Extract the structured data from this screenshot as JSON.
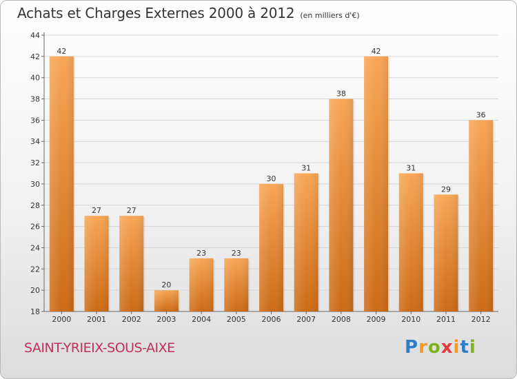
{
  "title": "Achats et Charges Externes 2000 à 2012",
  "unit": "(en milliers d'€)",
  "commune": "SAINT-YRIEIX-SOUS-AIXE",
  "logo": {
    "letters": [
      "P",
      "r",
      "o",
      "x",
      "i",
      "t",
      "i"
    ],
    "colors": [
      "#2c7fc7",
      "#f29a1f",
      "#7ab51d",
      "#e23b3b",
      "#f29a1f",
      "#2c7fc7",
      "#7ab51d"
    ]
  },
  "colors": {
    "bar_light": "#f7a655",
    "bar_dark": "#cc6a16",
    "grid": "#d6d6d6",
    "axis": "#666666"
  },
  "chart_data": {
    "type": "bar",
    "categories": [
      "2000",
      "2001",
      "2002",
      "2003",
      "2004",
      "2005",
      "2006",
      "2007",
      "2008",
      "2009",
      "2010",
      "2011",
      "2012"
    ],
    "values": [
      42,
      27,
      27,
      20,
      23,
      23,
      30,
      31,
      38,
      42,
      31,
      29,
      36
    ],
    "ylim": [
      18,
      44
    ],
    "yticks": [
      18,
      20,
      22,
      24,
      26,
      28,
      30,
      32,
      34,
      36,
      38,
      40,
      42,
      44
    ],
    "grid": true,
    "title": "Achats et Charges Externes 2000 à 2012",
    "xlabel": "",
    "ylabel": ""
  }
}
